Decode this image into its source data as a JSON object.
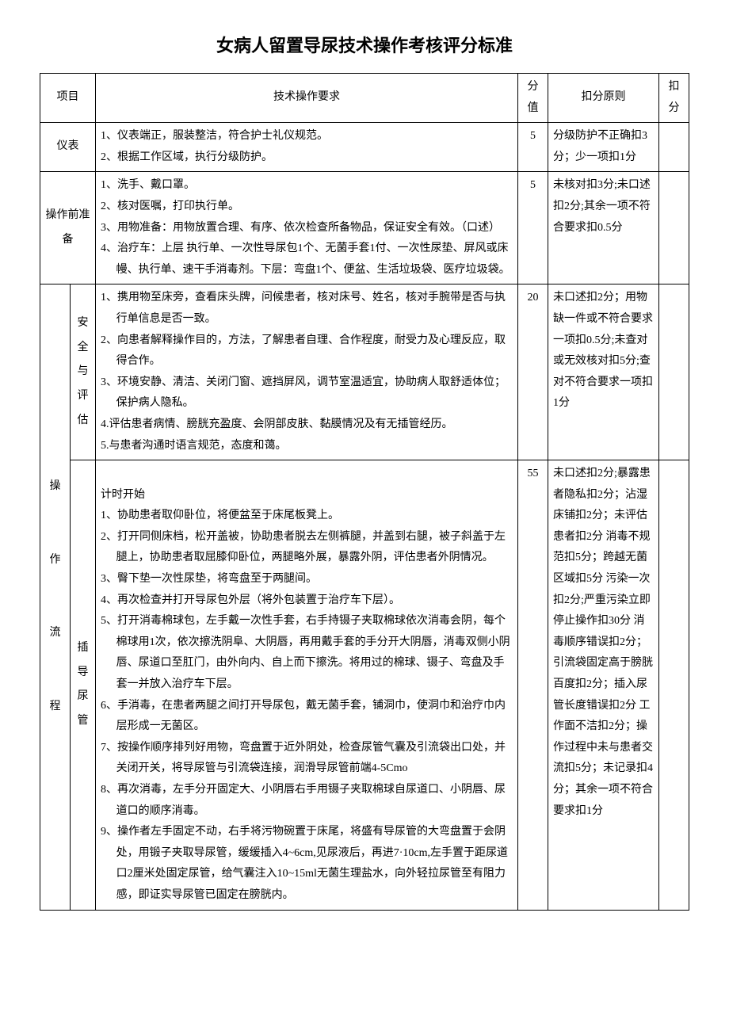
{
  "title": "女病人留置导尿技术操作考核评分标准",
  "headers": {
    "project": "项目",
    "requirement": "技术操作要求",
    "score": "分值",
    "rule": "扣分原则",
    "deduct": "扣分"
  },
  "rows": {
    "r1": {
      "proj": "仪表",
      "req1": "1、仪表端正，服装整洁，符合护士礼仪规范。",
      "req2": "2、根据工作区域，执行分级防护。",
      "score": "5",
      "rule": "分级防护不正确扣3分；少一项扣1分"
    },
    "r2": {
      "proj": "操作前准备",
      "req1": "1、洗手、戴口罩。",
      "req2": "2、核对医嘱，打印执行单。",
      "req3": "3、用物准备：用物放置合理、有序、依次检查所备物品，保证安全有效。（口述）",
      "req4": "4、治疗车：上层 执行单、一次性导尿包1个、无菌手套1付、一次性尿垫、屏风或床幔、执行单、速干手消毒剂。下层：弯盘1个、便盆、生活垃圾袋、医疗垃圾袋。",
      "score": "5",
      "rule": "未核对扣3分;未口述扣2分;其余一项不符合要求扣0.5分"
    },
    "r3": {
      "proj_main_l1": "操",
      "proj_main_l2": "作",
      "proj_main_l3": "流",
      "proj_main_l4": "程",
      "proj_sub1": "安全与评估",
      "proj_sub2": "插导尿管",
      "sub1_req1": "1、携用物至床旁，查看床头牌，问候患者，核对床号、姓名，核对手腕带是否与执行单信息是否一致。",
      "sub1_req2": "2、向患者解释操作目的，方法，了解患者自理、合作程度，耐受力及心理反应，取得合作。",
      "sub1_req3": "3、环境安静、清洁、关闭门窗、遮挡屏风，调节室温适宜，协助病人取舒适体位；保护病人隐私。",
      "sub1_req4": "4.评估患者病情、膀胱充盈度、会阴部皮肤、黏膜情况及有无插管经历。",
      "sub1_req5": "5.与患者沟通时语言规范，态度和蔼。",
      "sub1_score": "20",
      "sub1_rule": "未口述扣2分；用物缺一件或不符合要求一项扣0.5分;未查对或无效核对扣5分;查对不符合要求一项扣1分",
      "sub2_timer": "计时开始",
      "sub2_req1": "1、协助患者取仰卧位，将便盆至于床尾板凳上。",
      "sub2_req2": "2、打开同侧床档，松开盖被，协助患者脱去左侧裤腿，并盖到右腿，被子斜盖于左腿上，协助患者取屈膝仰卧位，两腿略外展，暴露外阴，评估患者外阴情况。",
      "sub2_req3": "3、臀下垫一次性尿垫，将弯盘至于两腿间。",
      "sub2_req4": "4、再次检查并打开导尿包外层（将外包装置于治疗车下层）。",
      "sub2_req5": "5、打开消毒棉球包，左手戴一次性手套，右手持镊子夹取棉球依次消毒会阴，每个棉球用1次，依次擦洗阴阜、大阴唇，再用戴手套的手分开大阴唇，消毒双侧小阴唇、尿道口至肛门，由外向内、自上而下擦洗。将用过的棉球、镊子、弯盘及手套一并放入治疗车下层。",
      "sub2_req6": "6、手消毒，在患者两腿之间打开导尿包，戴无菌手套，铺洞巾，使洞巾和治疗巾内层形成一无菌区。",
      "sub2_req7": "7、按操作顺序排列好用物，弯盘置于近外阴处，检查尿管气囊及引流袋出口处，并关闭开关，将导尿管与引流袋连接，润滑导尿管前端4-5Cmo",
      "sub2_req8": "8、再次消毒，左手分开固定大、小阴唇右手用镊子夹取棉球自尿道口、小阴唇、尿道口的顺序消毒。",
      "sub2_req9": "9、操作者左手固定不动，右手将污物碗置于床尾，将盛有导尿管的大弯盘置于会阴处，用锻子夹取导尿管，缓缓插入4~6cm,见尿液后，再进7·10cm,左手置于距尿道口2厘米处固定尿管，给气囊注入10~15ml无菌生理盐水，向外轻拉尿管至有阻力感，即证实导尿管已固定在膀胱内。",
      "sub2_score": "55",
      "sub2_rule": "未口述扣2分;暴露患者隐私扣2分；沾湿床铺扣2分；未评估患者扣2分 消毒不规范扣5分；跨越无菌区域扣5分 污染一次扣2分;严重污染立即停止操作扣30分 消毒顺序错误扣2分；引流袋固定高于膀胱百度扣2分；插入尿管长度错误扣2分 工作面不洁扣2分；操作过程中未与患者交流扣5分；未记录扣4分；其余一项不符合要求扣1分"
    }
  }
}
